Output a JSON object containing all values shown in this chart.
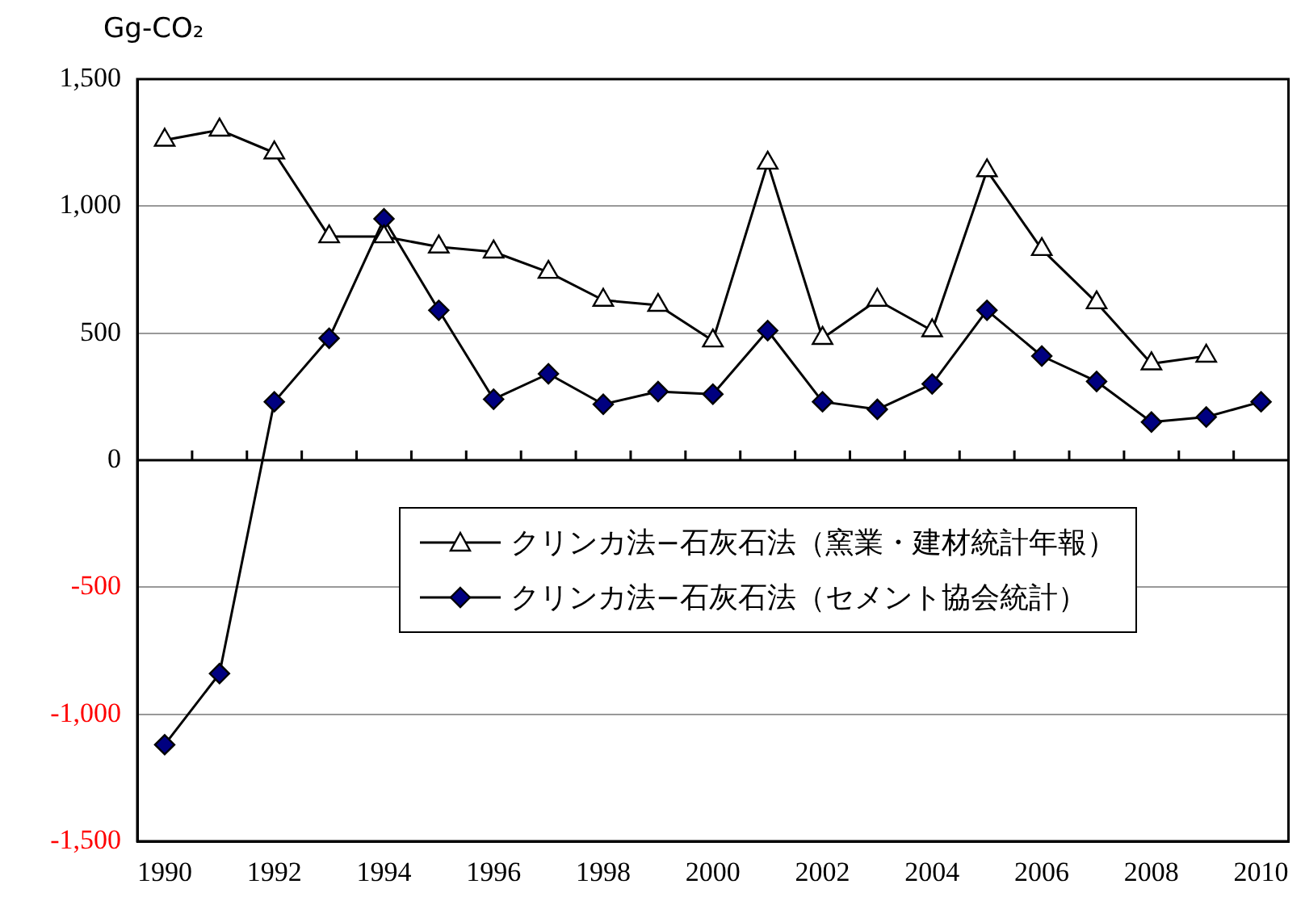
{
  "chart_data": {
    "type": "line",
    "ylabel": "Gg-CO₂",
    "categories": [
      "1990",
      null,
      "1992",
      null,
      "1994",
      null,
      "1996",
      null,
      "1998",
      null,
      "2000",
      null,
      "2002",
      null,
      "2004",
      null,
      "2006",
      null,
      "2008",
      null,
      "2010"
    ],
    "series": [
      {
        "name": "クリンカ法−石灰石法（窯業・建材統計年報）",
        "color": "#000000",
        "marker": "triangle",
        "values": [
          1260,
          1300,
          1210,
          880,
          880,
          840,
          820,
          740,
          630,
          610,
          470,
          1170,
          480,
          630,
          510,
          1140,
          830,
          620,
          380,
          410,
          null
        ]
      },
      {
        "name": "クリンカ法−石灰石法（セメント協会統計）",
        "color": "#000080",
        "marker": "diamond",
        "values": [
          -1120,
          -840,
          230,
          480,
          950,
          590,
          240,
          340,
          220,
          270,
          260,
          510,
          230,
          200,
          300,
          590,
          410,
          310,
          150,
          170,
          230
        ]
      }
    ],
    "ylim": [
      -1500,
      1500
    ],
    "yticks": [
      {
        "value": -1500,
        "label": "-1,500"
      },
      {
        "value": -1000,
        "label": "-1,000"
      },
      {
        "value": -500,
        "label": "-500"
      },
      0,
      {
        "value": 500,
        "label": "500"
      },
      {
        "value": 1000,
        "label": "1,000"
      },
      {
        "value": 1500,
        "label": "1,500"
      }
    ],
    "grid": "y",
    "legend": "center",
    "line_style": "solid"
  }
}
